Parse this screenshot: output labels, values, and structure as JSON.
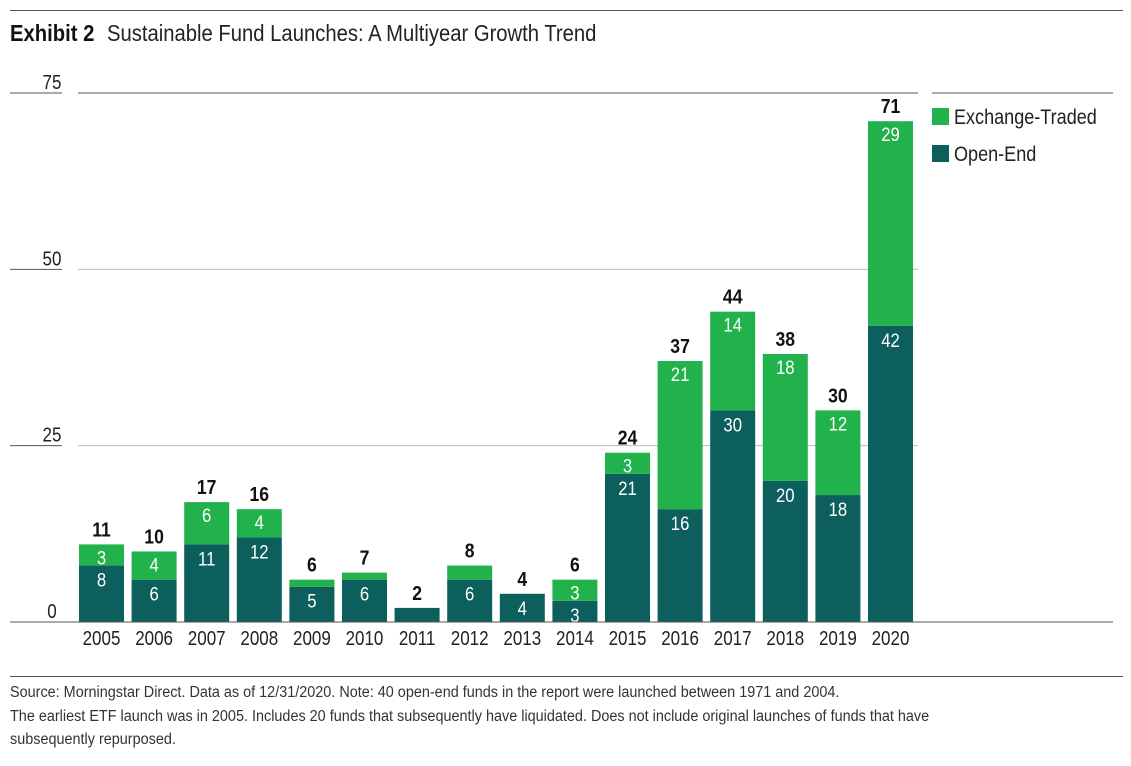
{
  "exhibit_label": "Exhibit 2",
  "title": "Sustainable Fund Launches: A Multiyear Growth Trend",
  "colors": {
    "exchange_traded": "#21b24b",
    "open_end": "#0c5f5d",
    "grid": "#bdbdbd",
    "axis": "#555555"
  },
  "chart_data": {
    "type": "bar",
    "stacked": true,
    "categories": [
      "2005",
      "2006",
      "2007",
      "2008",
      "2009",
      "2010",
      "2011",
      "2012",
      "2013",
      "2014",
      "2015",
      "2016",
      "2017",
      "2018",
      "2019",
      "2020"
    ],
    "series": [
      {
        "name": "Open-End",
        "values": [
          8,
          6,
          11,
          12,
          5,
          6,
          2,
          6,
          4,
          3,
          21,
          16,
          30,
          20,
          18,
          42
        ]
      },
      {
        "name": "Exchange-Traded",
        "values": [
          3,
          4,
          6,
          4,
          1,
          1,
          0,
          2,
          0,
          3,
          3,
          21,
          14,
          18,
          12,
          29
        ]
      }
    ],
    "totals": [
      11,
      10,
      17,
      16,
      6,
      7,
      2,
      8,
      4,
      6,
      24,
      37,
      44,
      38,
      30,
      71
    ],
    "segment_labels": {
      "Open-End": [
        "8",
        "6",
        "11",
        "12",
        "5",
        "6",
        "",
        "6",
        "4",
        "3",
        "21",
        "16",
        "30",
        "20",
        "18",
        "42"
      ],
      "Exchange-Traded": [
        "3",
        "4",
        "6",
        "4",
        "",
        "",
        "",
        "",
        "",
        "3",
        "3",
        "21",
        "14",
        "18",
        "12",
        "29"
      ]
    },
    "yticks": [
      0,
      25,
      50,
      75
    ],
    "ylim": [
      0,
      75
    ],
    "grid": true,
    "legend": {
      "position": "top-right",
      "entries": [
        "Exchange-Traded",
        "Open-End"
      ]
    },
    "xlabel": "",
    "ylabel": ""
  },
  "footnote": {
    "line1": "Source: Morningstar Direct. Data as of 12/31/2020. Note: 40 open-end funds in the report were launched between 1971 and 2004.",
    "line2": "The earliest ETF launch was in 2005. Includes 20 funds that subsequently have liquidated. Does not include original launches of funds that have",
    "line3": "subsequently repurposed."
  }
}
